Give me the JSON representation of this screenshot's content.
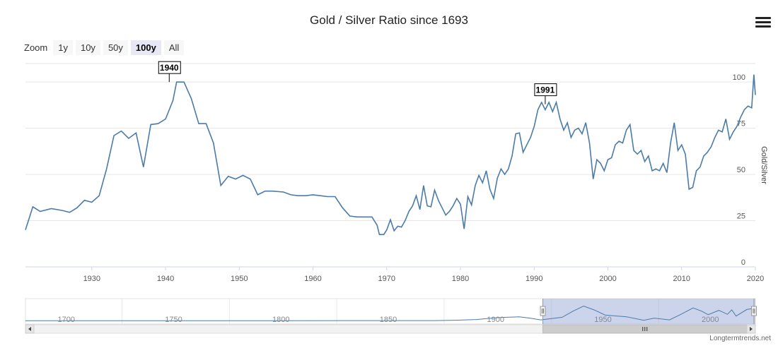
{
  "title": "Gold / Silver Ratio since 1693",
  "zoom": {
    "label": "Zoom",
    "buttons": [
      "1y",
      "10y",
      "50y",
      "100y",
      "All"
    ],
    "active": "100y"
  },
  "credit": "Longtermtrends.net",
  "colors": {
    "line": "#4b7ba8",
    "grid": "#e6e6e6",
    "navigator_mask": "#aab7e0"
  },
  "icons": {
    "menu": "hamburger-icon",
    "scroll_left": "arrow-left-icon",
    "scroll_right": "arrow-right-icon",
    "scroll_thumb": "grip-icon"
  },
  "chart_data": {
    "type": "line",
    "title": "Gold / Silver Ratio since 1693",
    "ylabel": "Gold/Silver",
    "xlim": [
      1921,
      2020
    ],
    "ylim": [
      0,
      110
    ],
    "x_ticks": [
      1930,
      1940,
      1950,
      1960,
      1970,
      1980,
      1990,
      2000,
      2010,
      2020
    ],
    "y_ticks": [
      0,
      25,
      50,
      75,
      100
    ],
    "grid": true,
    "y_axis_side": "right",
    "flags": [
      {
        "x": 1940.5,
        "y": 100,
        "label": "1940"
      },
      {
        "x": 1991.5,
        "y": 88,
        "label": "1991"
      }
    ],
    "series": [
      {
        "values": [
          [
            1921,
            20
          ],
          [
            1922,
            32.5
          ],
          [
            1923,
            30
          ],
          [
            1924.5,
            31.5
          ],
          [
            1926,
            30.5
          ],
          [
            1927,
            29.5
          ],
          [
            1928,
            32
          ],
          [
            1929,
            36
          ],
          [
            1930,
            35
          ],
          [
            1931,
            38.5
          ],
          [
            1932,
            53
          ],
          [
            1933,
            71
          ],
          [
            1934,
            73.5
          ],
          [
            1935,
            69.5
          ],
          [
            1936,
            72.5
          ],
          [
            1937,
            54
          ],
          [
            1938,
            77
          ],
          [
            1939,
            77.5
          ],
          [
            1940,
            80
          ],
          [
            1941,
            90
          ],
          [
            1941.5,
            100
          ],
          [
            1942.5,
            100
          ],
          [
            1943.5,
            91
          ],
          [
            1944.5,
            77.5
          ],
          [
            1945.5,
            77.5
          ],
          [
            1946.5,
            67
          ],
          [
            1947.5,
            44
          ],
          [
            1948.5,
            49
          ],
          [
            1949.5,
            47.5
          ],
          [
            1950.5,
            49.5
          ],
          [
            1951.5,
            47.5
          ],
          [
            1952.5,
            39
          ],
          [
            1953.5,
            41
          ],
          [
            1954.5,
            41
          ],
          [
            1956,
            40.5
          ],
          [
            1957,
            39
          ],
          [
            1958,
            38.5
          ],
          [
            1959,
            38.5
          ],
          [
            1960,
            39
          ],
          [
            1961,
            38.5
          ],
          [
            1962,
            38
          ],
          [
            1963,
            38
          ],
          [
            1964,
            32
          ],
          [
            1965,
            27.5
          ],
          [
            1966,
            27
          ],
          [
            1967,
            27
          ],
          [
            1968,
            27
          ],
          [
            1968.7,
            22.5
          ],
          [
            1969,
            17.5
          ],
          [
            1969.6,
            17.5
          ],
          [
            1970,
            20
          ],
          [
            1970.5,
            25.5
          ],
          [
            1971,
            19.5
          ],
          [
            1971.5,
            22
          ],
          [
            1972,
            21.5
          ],
          [
            1972.5,
            25
          ],
          [
            1973,
            30
          ],
          [
            1973.5,
            33
          ],
          [
            1974,
            38.5
          ],
          [
            1974.5,
            31
          ],
          [
            1975,
            44
          ],
          [
            1975.5,
            33
          ],
          [
            1976,
            32.5
          ],
          [
            1976.5,
            41.5
          ],
          [
            1977,
            36
          ],
          [
            1977.5,
            32
          ],
          [
            1978,
            28
          ],
          [
            1978.5,
            30
          ],
          [
            1979,
            33
          ],
          [
            1979.5,
            37
          ],
          [
            1980,
            34
          ],
          [
            1980.5,
            20.5
          ],
          [
            1981,
            38
          ],
          [
            1981.5,
            33.5
          ],
          [
            1982,
            44
          ],
          [
            1982.5,
            49.5
          ],
          [
            1983,
            45.5
          ],
          [
            1983.5,
            52
          ],
          [
            1984,
            42
          ],
          [
            1984.5,
            37
          ],
          [
            1985,
            48
          ],
          [
            1985.5,
            53
          ],
          [
            1986,
            50
          ],
          [
            1986.5,
            53
          ],
          [
            1987,
            60
          ],
          [
            1987.5,
            72
          ],
          [
            1988,
            72.5
          ],
          [
            1988.5,
            62
          ],
          [
            1989,
            66
          ],
          [
            1989.5,
            70
          ],
          [
            1990,
            76
          ],
          [
            1990.5,
            85
          ],
          [
            1991,
            89
          ],
          [
            1991.5,
            85
          ],
          [
            1992,
            89
          ],
          [
            1992.5,
            84
          ],
          [
            1993,
            89
          ],
          [
            1993.5,
            80
          ],
          [
            1994,
            74
          ],
          [
            1994.5,
            78
          ],
          [
            1995,
            70
          ],
          [
            1995.5,
            74
          ],
          [
            1996,
            75
          ],
          [
            1996.5,
            72
          ],
          [
            1997,
            78
          ],
          [
            1997.5,
            67
          ],
          [
            1998,
            47.5
          ],
          [
            1998.5,
            58
          ],
          [
            1999,
            56
          ],
          [
            1999.5,
            52
          ],
          [
            2000,
            58
          ],
          [
            2000.5,
            59
          ],
          [
            2001,
            66
          ],
          [
            2001.5,
            68
          ],
          [
            2002,
            67
          ],
          [
            2002.5,
            74
          ],
          [
            2003,
            77
          ],
          [
            2003.5,
            63
          ],
          [
            2004,
            61
          ],
          [
            2004.5,
            63
          ],
          [
            2005,
            57
          ],
          [
            2005.5,
            60
          ],
          [
            2006,
            52
          ],
          [
            2006.5,
            53
          ],
          [
            2007,
            52
          ],
          [
            2007.5,
            56
          ],
          [
            2008,
            51
          ],
          [
            2008.5,
            67
          ],
          [
            2009,
            78
          ],
          [
            2009.5,
            63
          ],
          [
            2010,
            66
          ],
          [
            2010.5,
            61
          ],
          [
            2011,
            42
          ],
          [
            2011.5,
            43
          ],
          [
            2012,
            52
          ],
          [
            2012.5,
            54
          ],
          [
            2013,
            60
          ],
          [
            2013.5,
            62
          ],
          [
            2014,
            65
          ],
          [
            2014.5,
            70
          ],
          [
            2015,
            74
          ],
          [
            2015.5,
            73
          ],
          [
            2016,
            80
          ],
          [
            2016.5,
            69
          ],
          [
            2017,
            73
          ],
          [
            2017.5,
            76
          ],
          [
            2018,
            81
          ],
          [
            2018.5,
            85
          ],
          [
            2019,
            87
          ],
          [
            2019.5,
            86
          ],
          [
            2019.8,
            104
          ],
          [
            2020,
            93
          ]
        ]
      }
    ]
  },
  "navigator": {
    "xlim": [
      1680,
      2020
    ],
    "labels": [
      "1700",
      "1750",
      "1800",
      "1850",
      "1900",
      "1950",
      "2000"
    ],
    "selection": [
      1921,
      2020
    ],
    "values": [
      [
        1680,
        15
      ],
      [
        1700,
        15
      ],
      [
        1720,
        15
      ],
      [
        1750,
        15
      ],
      [
        1790,
        15
      ],
      [
        1800,
        15.5
      ],
      [
        1830,
        15.7
      ],
      [
        1850,
        15.8
      ],
      [
        1870,
        16
      ],
      [
        1880,
        18
      ],
      [
        1890,
        22
      ],
      [
        1900,
        33
      ],
      [
        1910,
        38
      ],
      [
        1915,
        30
      ],
      [
        1920,
        20
      ],
      [
        1930,
        35
      ],
      [
        1935,
        70
      ],
      [
        1940,
        100
      ],
      [
        1945,
        77
      ],
      [
        1950,
        48
      ],
      [
        1960,
        38
      ],
      [
        1968,
        18
      ],
      [
        1973,
        30
      ],
      [
        1980,
        20
      ],
      [
        1985,
        50
      ],
      [
        1991,
        89
      ],
      [
        1995,
        70
      ],
      [
        1998,
        50
      ],
      [
        2003,
        75
      ],
      [
        2007,
        52
      ],
      [
        2009,
        78
      ],
      [
        2011,
        42
      ],
      [
        2016,
        80
      ],
      [
        2019,
        86
      ],
      [
        2020,
        100
      ]
    ]
  }
}
